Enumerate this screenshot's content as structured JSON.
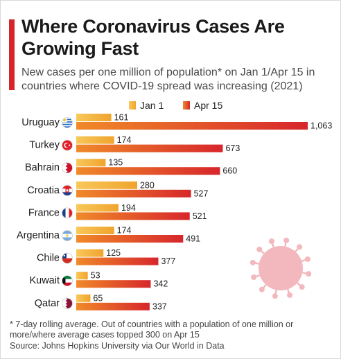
{
  "header": {
    "title": "Where Coronavirus Cases Are Growing Fast",
    "subtitle": "New cases per one million of population* on Jan 1/Apr 15 in countries where COVID-19 spread was increasing (2021)"
  },
  "chart_data": {
    "type": "bar",
    "orientation": "horizontal",
    "title": "Where Coronavirus Cases Are Growing Fast",
    "categories": [
      "Uruguay",
      "Turkey",
      "Bahrain",
      "Croatia",
      "France",
      "Argentina",
      "Chile",
      "Kuwait",
      "Qatar"
    ],
    "series": [
      {
        "name": "Jan 1",
        "values": [
          161,
          174,
          135,
          280,
          194,
          174,
          125,
          53,
          65
        ],
        "color": "#f4b33f"
      },
      {
        "name": "Apr 15",
        "values": [
          1063,
          673,
          660,
          527,
          521,
          491,
          377,
          342,
          337
        ],
        "color": "#d7262b"
      }
    ],
    "value_labels": {
      "Jan 1": [
        "161",
        "174",
        "135",
        "280",
        "194",
        "174",
        "125",
        "53",
        "65"
      ],
      "Apr 15": [
        "1,063",
        "673",
        "660",
        "527",
        "521",
        "491",
        "377",
        "342",
        "337"
      ]
    },
    "flag_icons": [
      "uruguay-flag-icon",
      "turkey-flag-icon",
      "bahrain-flag-icon",
      "croatia-flag-icon",
      "france-flag-icon",
      "argentina-flag-icon",
      "chile-flag-icon",
      "kuwait-flag-icon",
      "qatar-flag-icon"
    ],
    "xlim": [
      0,
      1063
    ],
    "legend": "top-center",
    "grid": false
  },
  "footnote": "* 7-day rolling average. Out of countries with a population of one million or more/where average cases topped 300 on Apr 15",
  "source": "Source: Johns Hopkins University via Our World in Data",
  "decoration": {
    "icon": "coronavirus-icon",
    "color": "#f2b8bd"
  }
}
